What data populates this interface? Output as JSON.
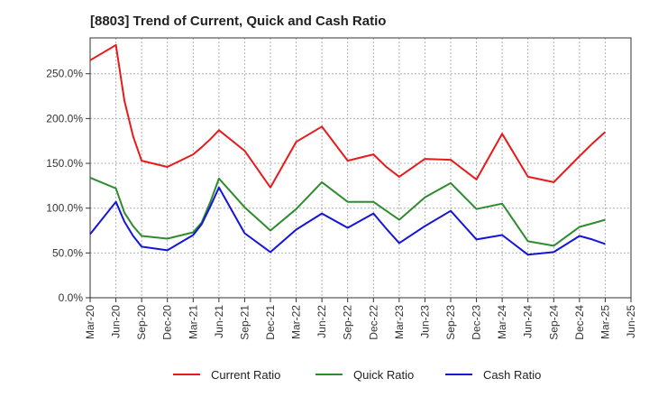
{
  "chart_data": {
    "type": "line",
    "title": "[8803]  Trend of Current, Quick and Cash Ratio",
    "xlabel": "",
    "ylabel": "",
    "ylim": [
      0,
      290
    ],
    "yticks": [
      0,
      50,
      100,
      150,
      200,
      250
    ],
    "ytick_labels": [
      "0.0%",
      "50.0%",
      "100.0%",
      "150.0%",
      "200.0%",
      "250.0%"
    ],
    "x_tick_labels": [
      "Mar-20",
      "Jun-20",
      "Sep-20",
      "Dec-20",
      "Mar-21",
      "Jun-21",
      "Sep-21",
      "Dec-21",
      "Mar-22",
      "Jun-22",
      "Sep-22",
      "Dec-22",
      "Mar-23",
      "Jun-23",
      "Sep-23",
      "Dec-23",
      "Mar-24",
      "Jun-24",
      "Sep-24",
      "Dec-24",
      "Mar-25",
      "Jun-25"
    ],
    "x": [
      0,
      1,
      1.33,
      1.67,
      2,
      3,
      4,
      4.33,
      4.67,
      5,
      6,
      7,
      8,
      9,
      10,
      11,
      11.5,
      12,
      13,
      14,
      15,
      16,
      17,
      18,
      19,
      19.5,
      20
    ],
    "series": [
      {
        "name": "Current Ratio",
        "color": "#e8191b",
        "values": [
          265,
          282,
          220,
          180,
          153,
          146,
          160,
          168,
          177,
          187,
          164,
          123,
          174,
          191,
          153,
          160,
          146,
          135,
          155,
          154,
          132,
          183,
          135,
          129,
          158,
          172,
          185
        ]
      },
      {
        "name": "Quick Ratio",
        "color": "#2e8b2e",
        "values": [
          134,
          122,
          95,
          80,
          69,
          66,
          73,
          84,
          107,
          133,
          101,
          75,
          99,
          129,
          107,
          107,
          97,
          87,
          112,
          128,
          99,
          105,
          63,
          58,
          79,
          83,
          87
        ]
      },
      {
        "name": "Cash Ratio",
        "color": "#1515d8",
        "values": [
          71,
          107,
          85,
          69,
          57,
          53,
          70,
          82,
          102,
          123,
          72,
          51,
          76,
          94,
          78,
          94,
          77,
          61,
          80,
          97,
          65,
          70,
          48,
          51,
          69,
          65,
          60
        ]
      }
    ],
    "legend_position": "bottom",
    "grid": true
  }
}
